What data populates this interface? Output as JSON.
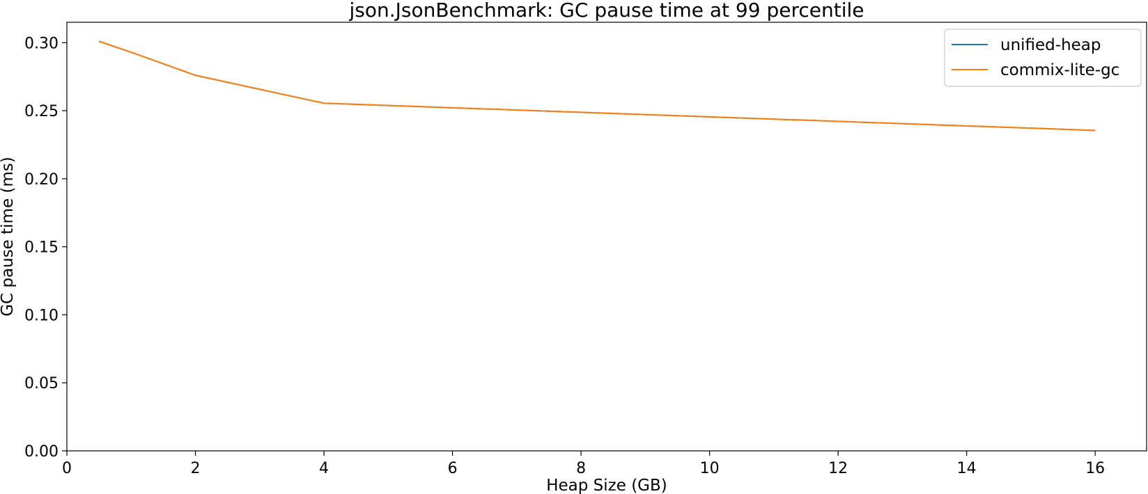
{
  "chart_data": {
    "type": "line",
    "title": "json.JsonBenchmark: GC pause time at 99 percentile",
    "xlabel": "Heap Size (GB)",
    "ylabel": "GC pause time (ms)",
    "xlim": [
      0,
      16.8
    ],
    "ylim": [
      0,
      0.315
    ],
    "xticks": [
      0,
      2,
      4,
      6,
      8,
      10,
      12,
      14,
      16
    ],
    "xtick_labels": [
      "0",
      "2",
      "4",
      "6",
      "8",
      "10",
      "12",
      "14",
      "16"
    ],
    "yticks": [
      0.0,
      0.05,
      0.1,
      0.15,
      0.2,
      0.25,
      0.3
    ],
    "ytick_labels": [
      "0.00",
      "0.05",
      "0.10",
      "0.15",
      "0.20",
      "0.25",
      "0.30"
    ],
    "grid": false,
    "legend_position": "top-right",
    "series": [
      {
        "name": "unified-heap",
        "color": "#1f77b4",
        "x": [
          0.5,
          1,
          2,
          4,
          16
        ],
        "y": [
          0.301,
          0.293,
          0.276,
          0.2555,
          0.2355
        ]
      },
      {
        "name": "commix-lite-gc",
        "color": "#ff7f0e",
        "x": [
          0.5,
          1,
          2,
          4,
          16
        ],
        "y": [
          0.301,
          0.293,
          0.276,
          0.2555,
          0.2355
        ]
      }
    ]
  }
}
